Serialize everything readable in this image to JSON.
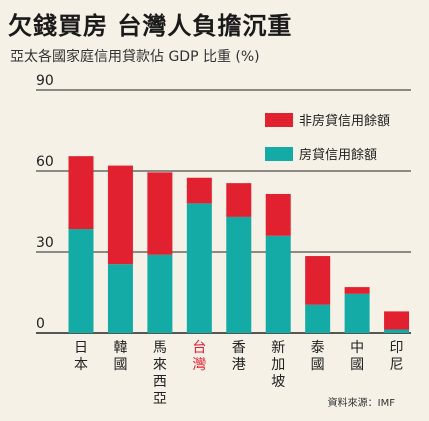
{
  "header": {
    "title": "欠錢買房  台灣人負擔沉重",
    "subtitle": "亞太各國家庭信用貸款佔 GDP 比重 (%)"
  },
  "source": "資料來源：IMF",
  "colors": {
    "mortgage": "#14aaa6",
    "non_mortgage": "#e12130",
    "highlight_label": "#e12130",
    "background": "#f5f1e6"
  },
  "chart_data": {
    "type": "bar",
    "stacked": true,
    "title": "欠錢買房  台灣人負擔沉重",
    "subtitle": "亞太各國家庭信用貸款佔 GDP 比重 (%)",
    "xlabel": "",
    "ylabel": "",
    "ylim": [
      0,
      90
    ],
    "yticks": [
      0,
      30,
      60,
      90
    ],
    "grid": true,
    "legend_position": "top-right",
    "categories": [
      "日本",
      "韓國",
      "馬來西亞",
      "台灣",
      "香港",
      "新加坡",
      "泰國",
      "中國",
      "印尼"
    ],
    "highlight_category": "台灣",
    "series": [
      {
        "name": "房貸信用餘額",
        "color": "#14aaa6",
        "values": [
          38.5,
          25.5,
          29,
          48,
          43,
          36,
          10.5,
          14.5,
          1.3
        ]
      },
      {
        "name": "非房貸信用餘額",
        "color": "#e12130",
        "values": [
          27,
          36.5,
          30.5,
          9.5,
          12.5,
          15.5,
          18,
          2.5,
          6.7
        ]
      }
    ]
  }
}
